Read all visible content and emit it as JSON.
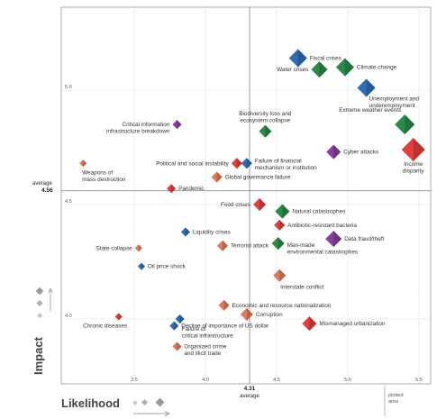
{
  "chart_data": {
    "type": "scatter",
    "xlabel": "Likelihood",
    "ylabel": "Impact",
    "xlim": [
      3.0,
      5.7
    ],
    "ylim": [
      3.55,
      5.3
    ],
    "x_ticks": [
      "3.5",
      "4.0",
      "4.5",
      "5.0",
      "5.5"
    ],
    "y_ticks": [
      "4.0",
      "4.5",
      "5.0"
    ],
    "average": {
      "label": "average",
      "x": 4.31,
      "x_text": "4.31",
      "y": 4.56,
      "y_text": "4.56"
    },
    "plotted_area_label": "plotted\narea",
    "grid": true,
    "colors": {
      "economic": "#2f6db5",
      "environmental": "#2a8a4a",
      "geopolitical": "#e07a5a",
      "societal": "#8a3fa0",
      "technological": "#7a8aa0",
      "critical": "#e43d3d",
      "legend_key": "#bdbdbd"
    },
    "points": [
      {
        "label": "Fiscal crises",
        "x": 4.65,
        "y": 5.14,
        "group": "economic",
        "size": 10,
        "lp": "r"
      },
      {
        "label": "Climate change",
        "x": 4.98,
        "y": 5.1,
        "group": "environmental",
        "size": 10,
        "lp": "r"
      },
      {
        "label": "Water crises",
        "x": 4.8,
        "y": 5.09,
        "group": "environmental",
        "size": 9,
        "lp": "l"
      },
      {
        "label": "Unemployment and\nunderemployment",
        "x": 5.13,
        "y": 5.01,
        "group": "economic",
        "size": 10,
        "lp": "b"
      },
      {
        "label": "Critical information\ninfrastructure breakdown",
        "x": 3.8,
        "y": 4.85,
        "group": "societal",
        "size": 5,
        "lp": "l"
      },
      {
        "label": "Extreme weather events",
        "x": 5.4,
        "y": 4.85,
        "group": "environmental",
        "size": 11,
        "lp": "tl"
      },
      {
        "label": "Biodiversity loss and\necosystem collapse",
        "x": 4.42,
        "y": 4.82,
        "group": "environmental",
        "size": 7,
        "lp": "t"
      },
      {
        "label": "Income\ndisparity",
        "x": 5.46,
        "y": 4.74,
        "group": "critical",
        "size": 13,
        "lp": "b"
      },
      {
        "label": "Cyber attacks",
        "x": 4.9,
        "y": 4.73,
        "group": "societal",
        "size": 8,
        "lp": "r"
      },
      {
        "label": "Failure of financial\nmechanism or institution",
        "x": 4.29,
        "y": 4.68,
        "group": "economic",
        "size": 6,
        "lp": "r"
      },
      {
        "label": "Political and social instability",
        "x": 4.22,
        "y": 4.68,
        "group": "critical",
        "size": 6,
        "lp": "l"
      },
      {
        "label": "Weapons of\nmass destruction",
        "x": 3.14,
        "y": 4.68,
        "group": "geopolitical",
        "size": 4,
        "lp": "b"
      },
      {
        "label": "Global governance failure",
        "x": 4.08,
        "y": 4.62,
        "group": "geopolitical",
        "size": 6,
        "lp": "r"
      },
      {
        "label": "Pandemic",
        "x": 3.76,
        "y": 4.57,
        "group": "critical",
        "size": 5,
        "lp": "r"
      },
      {
        "label": "Food crises",
        "x": 4.38,
        "y": 4.5,
        "group": "critical",
        "size": 7,
        "lp": "l"
      },
      {
        "label": "Natural catastrophes",
        "x": 4.54,
        "y": 4.47,
        "group": "environmental",
        "size": 8,
        "lp": "r"
      },
      {
        "label": "Antibiotic-resistant bacteria",
        "x": 4.52,
        "y": 4.41,
        "group": "critical",
        "size": 6,
        "lp": "r"
      },
      {
        "label": "Liquidity crises",
        "x": 3.86,
        "y": 4.38,
        "group": "economic",
        "size": 5,
        "lp": "r"
      },
      {
        "label": "Data fraud/theft",
        "x": 4.9,
        "y": 4.35,
        "group": "societal",
        "size": 9,
        "lp": "r"
      },
      {
        "label": "State collapse",
        "x": 3.53,
        "y": 4.31,
        "group": "geopolitical",
        "size": 4,
        "lp": "l"
      },
      {
        "label": "Terrorist attack",
        "x": 4.12,
        "y": 4.32,
        "group": "geopolitical",
        "size": 6,
        "lp": "r"
      },
      {
        "label": "Man-made\nenvironmental catastrophes",
        "x": 4.51,
        "y": 4.33,
        "group": "environmental",
        "size": 7,
        "lp": "r"
      },
      {
        "label": "Oil price shock",
        "x": 3.55,
        "y": 4.23,
        "group": "economic",
        "size": 4,
        "lp": "r"
      },
      {
        "label": "Interstate conflict",
        "x": 4.52,
        "y": 4.19,
        "group": "geopolitical",
        "size": 7,
        "lp": "b"
      },
      {
        "label": "Economic and resource nationalization",
        "x": 4.13,
        "y": 4.06,
        "group": "geopolitical",
        "size": 6,
        "lp": "r"
      },
      {
        "label": "Corruption",
        "x": 4.29,
        "y": 4.02,
        "group": "geopolitical",
        "size": 7,
        "lp": "r"
      },
      {
        "label": "Failure of\ncritical infrastructure",
        "x": 3.82,
        "y": 4.0,
        "group": "economic",
        "size": 5,
        "lp": "b"
      },
      {
        "label": "Chronic diseases",
        "x": 3.39,
        "y": 4.01,
        "group": "critical",
        "size": 4,
        "lp": "b"
      },
      {
        "label": "Mismanaged urbanization",
        "x": 4.73,
        "y": 3.98,
        "group": "critical",
        "size": 8,
        "lp": "r"
      },
      {
        "label": "Decline of importance of US dollar",
        "x": 3.78,
        "y": 3.97,
        "group": "economic",
        "size": 5,
        "lp": "r"
      },
      {
        "label": "Organized crime\nand illicit trade",
        "x": 3.8,
        "y": 3.88,
        "group": "geopolitical",
        "size": 5,
        "lp": "r"
      }
    ]
  }
}
